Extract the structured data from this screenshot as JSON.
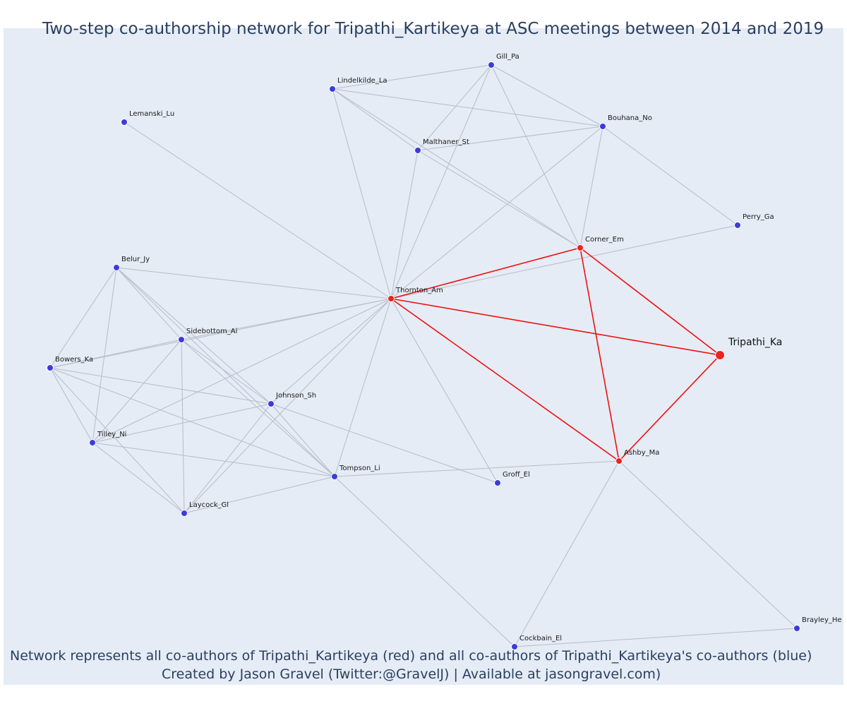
{
  "title": "Two-step co-authorship network for Tripathi_Kartikeya at ASC meetings between 2014 and 2019",
  "caption_line1": "Network represents all co-authors of Tripathi_Kartikeya (red) and all co-authors of Tripathi_Kartikeya's co-authors (blue)",
  "caption_line2": "Created by Jason Gravel (Twitter:@GravelJ) | Available at jasongravel.com)",
  "colors": {
    "background": "#e5ecf6",
    "text": "#2a3f5f",
    "edge_gray": "#b7bcc9",
    "edge_red": "#ee1111",
    "node_blue": "#3c3cdc",
    "node_red": "#ee2222"
  },
  "nodes": [
    {
      "id": "Tripathi_Ka",
      "group": "focal"
    },
    {
      "id": "Thornton_Am",
      "group": "red"
    },
    {
      "id": "Corner_Em",
      "group": "red"
    },
    {
      "id": "Ashby_Ma",
      "group": "red"
    },
    {
      "id": "Gill_Pa",
      "group": "blue"
    },
    {
      "id": "Lindelkilde_La",
      "group": "blue"
    },
    {
      "id": "Lemanski_Lu",
      "group": "blue"
    },
    {
      "id": "Bouhana_No",
      "group": "blue"
    },
    {
      "id": "Malthaner_St",
      "group": "blue"
    },
    {
      "id": "Perry_Ga",
      "group": "blue"
    },
    {
      "id": "Belur_Jy",
      "group": "blue"
    },
    {
      "id": "Sidebottom_Ai",
      "group": "blue"
    },
    {
      "id": "Bowers_Ka",
      "group": "blue"
    },
    {
      "id": "Johnson_Sh",
      "group": "blue"
    },
    {
      "id": "Tilley_Ni",
      "group": "blue"
    },
    {
      "id": "Tompson_Li",
      "group": "blue"
    },
    {
      "id": "Groff_El",
      "group": "blue"
    },
    {
      "id": "Laycock_Gl",
      "group": "blue"
    },
    {
      "id": "Cockbain_El",
      "group": "blue"
    },
    {
      "id": "Brayley_He",
      "group": "blue"
    }
  ],
  "edges": [
    [
      "Tripathi_Ka",
      "Thornton_Am"
    ],
    [
      "Tripathi_Ka",
      "Corner_Em"
    ],
    [
      "Tripathi_Ka",
      "Ashby_Ma"
    ],
    [
      "Thornton_Am",
      "Corner_Em"
    ],
    [
      "Thornton_Am",
      "Ashby_Ma"
    ],
    [
      "Corner_Em",
      "Ashby_Ma"
    ],
    [
      "Thornton_Am",
      "Lemanski_Lu"
    ],
    [
      "Thornton_Am",
      "Lindelkilde_La"
    ],
    [
      "Thornton_Am",
      "Gill_Pa"
    ],
    [
      "Thornton_Am",
      "Malthaner_St"
    ],
    [
      "Thornton_Am",
      "Bouhana_No"
    ],
    [
      "Thornton_Am",
      "Perry_Ga"
    ],
    [
      "Thornton_Am",
      "Belur_Jy"
    ],
    [
      "Thornton_Am",
      "Sidebottom_Ai"
    ],
    [
      "Thornton_Am",
      "Bowers_Ka"
    ],
    [
      "Thornton_Am",
      "Johnson_Sh"
    ],
    [
      "Thornton_Am",
      "Tilley_Ni"
    ],
    [
      "Thornton_Am",
      "Tompson_Li"
    ],
    [
      "Thornton_Am",
      "Laycock_Gl"
    ],
    [
      "Thornton_Am",
      "Groff_El"
    ],
    [
      "Corner_Em",
      "Gill_Pa"
    ],
    [
      "Corner_Em",
      "Lindelkilde_La"
    ],
    [
      "Corner_Em",
      "Malthaner_St"
    ],
    [
      "Corner_Em",
      "Bouhana_No"
    ],
    [
      "Ashby_Ma",
      "Tompson_Li"
    ],
    [
      "Ashby_Ma",
      "Cockbain_El"
    ],
    [
      "Ashby_Ma",
      "Brayley_He"
    ],
    [
      "Gill_Pa",
      "Lindelkilde_La"
    ],
    [
      "Gill_Pa",
      "Malthaner_St"
    ],
    [
      "Gill_Pa",
      "Bouhana_No"
    ],
    [
      "Lindelkilde_La",
      "Malthaner_St"
    ],
    [
      "Lindelkilde_La",
      "Bouhana_No"
    ],
    [
      "Malthaner_St",
      "Bouhana_No"
    ],
    [
      "Bouhana_No",
      "Perry_Ga"
    ],
    [
      "Belur_Jy",
      "Bowers_Ka"
    ],
    [
      "Belur_Jy",
      "Sidebottom_Ai"
    ],
    [
      "Belur_Jy",
      "Johnson_Sh"
    ],
    [
      "Belur_Jy",
      "Tilley_Ni"
    ],
    [
      "Belur_Jy",
      "Tompson_Li"
    ],
    [
      "Sidebottom_Ai",
      "Bowers_Ka"
    ],
    [
      "Sidebottom_Ai",
      "Tilley_Ni"
    ],
    [
      "Sidebottom_Ai",
      "Laycock_Gl"
    ],
    [
      "Sidebottom_Ai",
      "Tompson_Li"
    ],
    [
      "Sidebottom_Ai",
      "Johnson_Sh"
    ],
    [
      "Bowers_Ka",
      "Johnson_Sh"
    ],
    [
      "Bowers_Ka",
      "Tilley_Ni"
    ],
    [
      "Bowers_Ka",
      "Tompson_Li"
    ],
    [
      "Bowers_Ka",
      "Laycock_Gl"
    ],
    [
      "Tilley_Ni",
      "Johnson_Sh"
    ],
    [
      "Tilley_Ni",
      "Tompson_Li"
    ],
    [
      "Tilley_Ni",
      "Laycock_Gl"
    ],
    [
      "Johnson_Sh",
      "Tompson_Li"
    ],
    [
      "Johnson_Sh",
      "Laycock_Gl"
    ],
    [
      "Johnson_Sh",
      "Groff_El"
    ],
    [
      "Tompson_Li",
      "Laycock_Gl"
    ],
    [
      "Tompson_Li",
      "Cockbain_El"
    ],
    [
      "Cockbain_El",
      "Brayley_He"
    ]
  ]
}
